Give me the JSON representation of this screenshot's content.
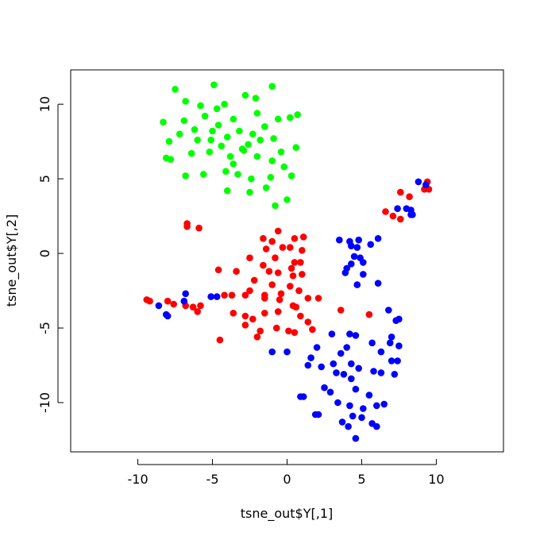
{
  "chart_data": {
    "type": "scatter",
    "xlabel": "tsne_out$Y[,1]",
    "ylabel": "tsne_out$Y[,2]",
    "xlim": [
      -14.5,
      14.5
    ],
    "ylim": [
      -13.3,
      12.3
    ],
    "xticks": [
      -10,
      -5,
      0,
      5,
      10
    ],
    "yticks": [
      -10,
      -5,
      0,
      5,
      10
    ],
    "grid": false,
    "series": [
      {
        "color": "#00ff00",
        "points": [
          [
            -7.5,
            11.0
          ],
          [
            -6.8,
            10.2
          ],
          [
            -4.9,
            11.3
          ],
          [
            -4.2,
            10.0
          ],
          [
            -2.8,
            10.6
          ],
          [
            -1.0,
            11.2
          ],
          [
            -2.1,
            10.4
          ],
          [
            -5.8,
            9.9
          ],
          [
            -8.3,
            8.8
          ],
          [
            -6.9,
            8.9
          ],
          [
            -5.5,
            9.2
          ],
          [
            -4.6,
            8.6
          ],
          [
            -3.6,
            9.0
          ],
          [
            -2.0,
            9.4
          ],
          [
            -0.6,
            9.0
          ],
          [
            0.2,
            9.1
          ],
          [
            0.7,
            9.3
          ],
          [
            -7.2,
            8.0
          ],
          [
            -6.0,
            7.6
          ],
          [
            -5.0,
            8.2
          ],
          [
            -4.0,
            7.8
          ],
          [
            -3.2,
            8.2
          ],
          [
            -2.6,
            7.3
          ],
          [
            -1.8,
            7.6
          ],
          [
            -0.9,
            7.7
          ],
          [
            0.6,
            7.1
          ],
          [
            -8.1,
            6.4
          ],
          [
            -7.8,
            6.3
          ],
          [
            -6.4,
            6.7
          ],
          [
            -5.2,
            6.8
          ],
          [
            -4.4,
            7.2
          ],
          [
            -3.8,
            6.5
          ],
          [
            -2.9,
            6.9
          ],
          [
            -2.0,
            6.5
          ],
          [
            -1.0,
            6.2
          ],
          [
            -0.2,
            5.8
          ],
          [
            -6.8,
            5.2
          ],
          [
            -5.6,
            5.3
          ],
          [
            -4.1,
            5.5
          ],
          [
            -3.3,
            5.3
          ],
          [
            -2.4,
            5.0
          ],
          [
            -1.1,
            5.1
          ],
          [
            0.3,
            5.2
          ],
          [
            -4.0,
            4.2
          ],
          [
            -2.5,
            4.1
          ],
          [
            -1.4,
            4.4
          ],
          [
            0.0,
            3.6
          ],
          [
            -0.8,
            3.2
          ],
          [
            -7.9,
            7.5
          ],
          [
            -3.0,
            7.0
          ],
          [
            -1.5,
            8.5
          ],
          [
            -6.2,
            8.3
          ],
          [
            -4.7,
            9.7
          ],
          [
            -5.1,
            7.6
          ],
          [
            -2.3,
            8.0
          ],
          [
            -0.4,
            6.8
          ],
          [
            -3.6,
            6.0
          ]
        ]
      },
      {
        "color": "#ff0000",
        "points": [
          [
            -6.7,
            2.0
          ],
          [
            -6.7,
            1.8
          ],
          [
            -5.9,
            1.7
          ],
          [
            -1.6,
            1.0
          ],
          [
            -0.6,
            1.5
          ],
          [
            0.5,
            1.0
          ],
          [
            1.1,
            1.1
          ],
          [
            -1.0,
            0.8
          ],
          [
            -0.3,
            0.4
          ],
          [
            0.2,
            0.4
          ],
          [
            -1.4,
            0.3
          ],
          [
            1.0,
            0.2
          ],
          [
            -2.5,
            -0.3
          ],
          [
            -0.8,
            -0.3
          ],
          [
            0.5,
            -0.6
          ],
          [
            0.9,
            -0.6
          ],
          [
            -1.6,
            -0.8
          ],
          [
            0.3,
            -1.0
          ],
          [
            -1.2,
            -1.2
          ],
          [
            -4.6,
            -1.1
          ],
          [
            -3.4,
            -1.2
          ],
          [
            -0.6,
            -1.3
          ],
          [
            0.4,
            -1.5
          ],
          [
            1.0,
            -1.4
          ],
          [
            -2.2,
            -1.8
          ],
          [
            -1.0,
            -2.1
          ],
          [
            0.2,
            -2.2
          ],
          [
            -2.5,
            -2.5
          ],
          [
            0.8,
            -2.5
          ],
          [
            -1.5,
            -2.8
          ],
          [
            -0.4,
            -2.7
          ],
          [
            -9.4,
            -3.1
          ],
          [
            -9.2,
            -3.2
          ],
          [
            -8.0,
            -3.2
          ],
          [
            -7.6,
            -3.4
          ],
          [
            -6.8,
            -3.5
          ],
          [
            -6.3,
            -3.6
          ],
          [
            -5.8,
            -3.5
          ],
          [
            -6.0,
            -3.9
          ],
          [
            -4.2,
            -2.8
          ],
          [
            -3.7,
            -2.8
          ],
          [
            -2.8,
            -2.8
          ],
          [
            -1.5,
            -3.0
          ],
          [
            -0.5,
            -3.1
          ],
          [
            0.4,
            -3.5
          ],
          [
            1.4,
            -3.0
          ],
          [
            2.1,
            -3.0
          ],
          [
            -3.6,
            -4.0
          ],
          [
            -2.8,
            -4.2
          ],
          [
            -2.3,
            -4.4
          ],
          [
            -1.5,
            -4.0
          ],
          [
            -0.6,
            -3.9
          ],
          [
            0.6,
            -3.6
          ],
          [
            0.9,
            -4.2
          ],
          [
            1.4,
            -4.6
          ],
          [
            -2.8,
            -4.8
          ],
          [
            -1.8,
            -5.2
          ],
          [
            -0.7,
            -5.0
          ],
          [
            0.1,
            -5.2
          ],
          [
            0.5,
            -5.3
          ],
          [
            1.7,
            -5.1
          ],
          [
            -4.5,
            -5.8
          ],
          [
            -2.0,
            -5.6
          ],
          [
            3.6,
            -3.8
          ],
          [
            5.5,
            -4.1
          ],
          [
            6.6,
            2.8
          ],
          [
            7.1,
            2.5
          ],
          [
            7.6,
            2.3
          ],
          [
            7.6,
            4.1
          ],
          [
            8.2,
            3.8
          ],
          [
            9.2,
            4.3
          ],
          [
            9.4,
            4.8
          ],
          [
            9.5,
            4.3
          ]
        ]
      },
      {
        "color": "#0000ff",
        "points": [
          [
            8.8,
            4.8
          ],
          [
            9.3,
            4.6
          ],
          [
            7.4,
            3.0
          ],
          [
            8.0,
            3.0
          ],
          [
            8.3,
            2.9
          ],
          [
            8.3,
            2.6
          ],
          [
            8.4,
            2.6
          ],
          [
            3.5,
            0.9
          ],
          [
            4.2,
            0.8
          ],
          [
            4.8,
            0.9
          ],
          [
            6.1,
            1.0
          ],
          [
            5.6,
            0.6
          ],
          [
            4.3,
            0.5
          ],
          [
            4.7,
            0.4
          ],
          [
            4.5,
            -0.2
          ],
          [
            4.9,
            -0.3
          ],
          [
            5.1,
            -0.6
          ],
          [
            4.3,
            -0.7
          ],
          [
            4.0,
            -1.0
          ],
          [
            5.1,
            -1.4
          ],
          [
            3.9,
            -1.3
          ],
          [
            6.1,
            -2.0
          ],
          [
            4.7,
            -2.1
          ],
          [
            -6.8,
            -2.7
          ],
          [
            -5.1,
            -2.9
          ],
          [
            -4.7,
            -2.9
          ],
          [
            -6.9,
            -3.2
          ],
          [
            -8.6,
            -3.5
          ],
          [
            -8.1,
            -4.1
          ],
          [
            -8.0,
            -4.2
          ],
          [
            6.8,
            -3.8
          ],
          [
            7.3,
            -4.5
          ],
          [
            7.5,
            -4.4
          ],
          [
            4.2,
            -5.4
          ],
          [
            4.6,
            -5.5
          ],
          [
            3.0,
            -5.4
          ],
          [
            2.0,
            -6.3
          ],
          [
            -1.0,
            -6.6
          ],
          [
            0.0,
            -6.6
          ],
          [
            3.6,
            -6.7
          ],
          [
            4.0,
            -6.3
          ],
          [
            5.7,
            -6.0
          ],
          [
            6.3,
            -6.6
          ],
          [
            7.0,
            -5.6
          ],
          [
            6.9,
            -6.0
          ],
          [
            7.5,
            -6.2
          ],
          [
            1.6,
            -7.0
          ],
          [
            2.3,
            -7.6
          ],
          [
            3.1,
            -7.4
          ],
          [
            4.3,
            -7.4
          ],
          [
            4.8,
            -7.7
          ],
          [
            5.8,
            -7.9
          ],
          [
            6.3,
            -8.0
          ],
          [
            7.2,
            -8.1
          ],
          [
            7.0,
            -7.2
          ],
          [
            7.4,
            -7.2
          ],
          [
            1.4,
            -7.5
          ],
          [
            3.3,
            -8.0
          ],
          [
            3.8,
            -8.1
          ],
          [
            4.3,
            -8.4
          ],
          [
            2.5,
            -9.0
          ],
          [
            2.9,
            -9.3
          ],
          [
            4.6,
            -9.1
          ],
          [
            5.5,
            -9.5
          ],
          [
            0.9,
            -9.6
          ],
          [
            1.1,
            -9.6
          ],
          [
            3.4,
            -10.0
          ],
          [
            4.2,
            -10.2
          ],
          [
            5.1,
            -10.4
          ],
          [
            6.0,
            -10.2
          ],
          [
            6.5,
            -10.1
          ],
          [
            2.1,
            -10.8
          ],
          [
            1.9,
            -10.8
          ],
          [
            4.4,
            -10.9
          ],
          [
            5.0,
            -11.0
          ],
          [
            3.7,
            -11.3
          ],
          [
            4.1,
            -11.6
          ],
          [
            5.7,
            -11.4
          ],
          [
            6.0,
            -11.6
          ],
          [
            4.6,
            -12.4
          ]
        ]
      }
    ]
  }
}
